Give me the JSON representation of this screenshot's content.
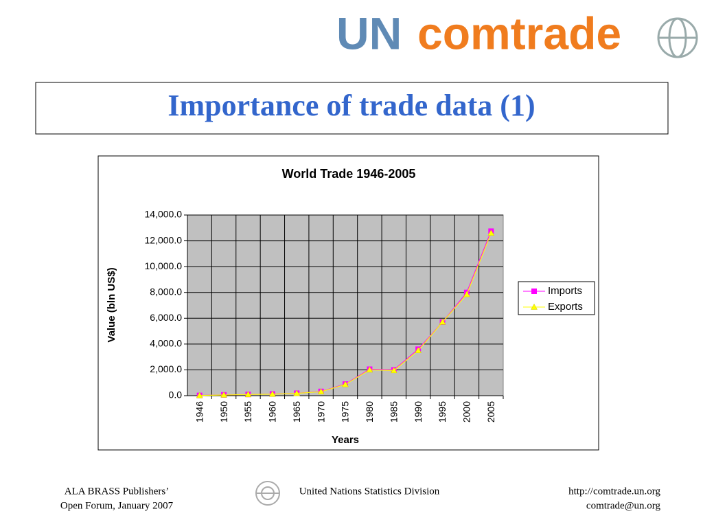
{
  "header": {
    "logo_un": "UN",
    "logo_comtrade": "comtrade",
    "title": "Importance of trade data (1)"
  },
  "chart_data": {
    "type": "line",
    "title": "World Trade 1946-2005",
    "xlabel": "Years",
    "ylabel": "Value (bln US$)",
    "categories": [
      "1946",
      "1950",
      "1955",
      "1960",
      "1965",
      "1970",
      "1975",
      "1980",
      "1985",
      "1990",
      "1995",
      "2000",
      "2005"
    ],
    "series": [
      {
        "name": "Imports",
        "color": "#ff00ff",
        "marker": "square",
        "values": [
          20,
          60,
          95,
          130,
          190,
          330,
          900,
          2050,
          2000,
          3600,
          5700,
          8000,
          12750
        ]
      },
      {
        "name": "Exports",
        "color": "#ffff00",
        "marker": "triangle",
        "values": [
          15,
          55,
          90,
          120,
          180,
          310,
          870,
          2000,
          1950,
          3500,
          5700,
          7850,
          12600
        ]
      }
    ],
    "ylim": [
      0,
      14000
    ],
    "yticks": [
      {
        "value": 0,
        "label": "0.0"
      },
      {
        "value": 2000,
        "label": "2,000.0"
      },
      {
        "value": 4000,
        "label": "4,000.0"
      },
      {
        "value": 6000,
        "label": "6,000.0"
      },
      {
        "value": 8000,
        "label": "8,000.0"
      },
      {
        "value": 10000,
        "label": "10,000.0"
      },
      {
        "value": 12000,
        "label": "12,000.0"
      },
      {
        "value": 14000,
        "label": "14,000.0"
      }
    ],
    "grid": true,
    "legend": "right"
  },
  "footer": {
    "left": [
      "ALA BRASS Publishers’",
      "Open Forum, January 2007"
    ],
    "center": "United Nations Statistics Division",
    "right": [
      "http://comtrade.un.org",
      "comtrade@un.org"
    ]
  }
}
